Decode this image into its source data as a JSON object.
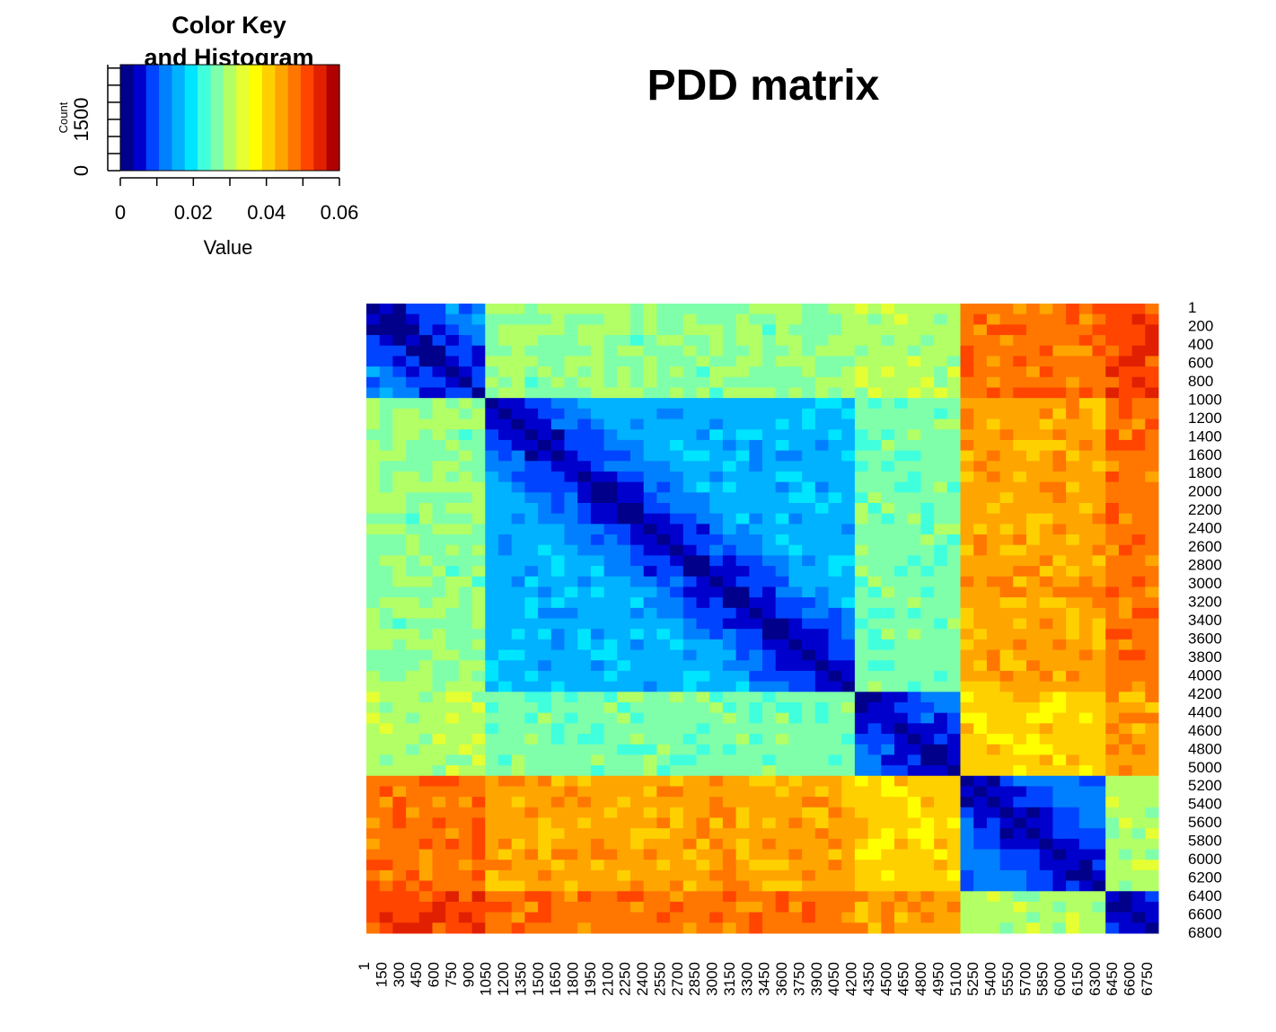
{
  "chart_data": {
    "type": "heatmap",
    "title": "PDD matrix",
    "color_key": {
      "title_lines": [
        "Color Key",
        "and Histogram"
      ],
      "xlabel": "Value",
      "ylabel": "Count",
      "x_ticks": [
        "0",
        "0.02",
        "0.04",
        "0.06"
      ],
      "x_tick_values": [
        0,
        0.02,
        0.04,
        0.06
      ],
      "y_ticks": [
        "0",
        "1500"
      ],
      "value_range": [
        0,
        0.06
      ],
      "colors": [
        "#00008b",
        "#0000cd",
        "#0044ff",
        "#0080ff",
        "#00b2ff",
        "#00e5ff",
        "#40ffdd",
        "#7fffaa",
        "#b2ff66",
        "#e5ff33",
        "#ffff00",
        "#ffd000",
        "#ffa500",
        "#ff7700",
        "#ff4500",
        "#e02000",
        "#b00000"
      ]
    },
    "x_labels": [
      "1",
      "150",
      "300",
      "450",
      "600",
      "750",
      "900",
      "1050",
      "1200",
      "1350",
      "1500",
      "1650",
      "1800",
      "1950",
      "2100",
      "2250",
      "2400",
      "2550",
      "2700",
      "2850",
      "3000",
      "3150",
      "3300",
      "3450",
      "3600",
      "3750",
      "3900",
      "4050",
      "4200",
      "4350",
      "4500",
      "4650",
      "4800",
      "4950",
      "5100",
      "5250",
      "5400",
      "5550",
      "5700",
      "5850",
      "6000",
      "6150",
      "6300",
      "6450",
      "6600",
      "6750"
    ],
    "y_labels": [
      "1",
      "200",
      "400",
      "600",
      "800",
      "1000",
      "1200",
      "1400",
      "1600",
      "1800",
      "2000",
      "2200",
      "2400",
      "2600",
      "2800",
      "3000",
      "3200",
      "3400",
      "3600",
      "3800",
      "4000",
      "4200",
      "4400",
      "4600",
      "4800",
      "5000",
      "5200",
      "5400",
      "5600",
      "5800",
      "6000",
      "6200",
      "6400",
      "6600",
      "6800"
    ],
    "cluster_bounds": [
      1,
      1050,
      4200,
      5100,
      6400,
      6800
    ],
    "block_values": [
      [
        0.013,
        0.028,
        0.03,
        0.048,
        0.052
      ],
      [
        0.028,
        0.016,
        0.026,
        0.044,
        0.048
      ],
      [
        0.03,
        0.026,
        0.013,
        0.04,
        0.045
      ],
      [
        0.048,
        0.044,
        0.04,
        0.012,
        0.03
      ],
      [
        0.052,
        0.048,
        0.045,
        0.03,
        0.012
      ]
    ]
  }
}
